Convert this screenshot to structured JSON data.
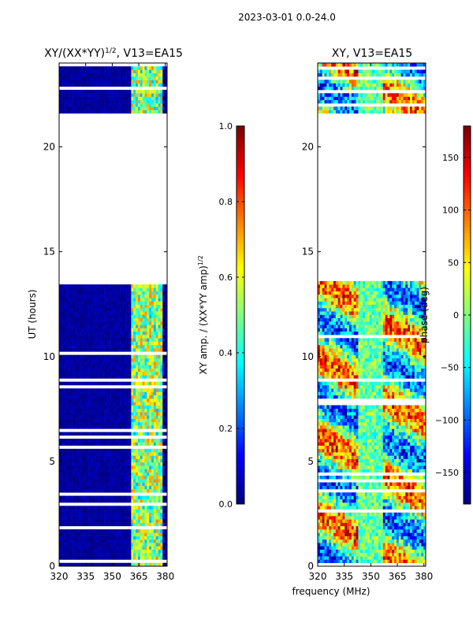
{
  "figure": {
    "suptitle": "2023-03-01 0.0-24.0",
    "xlabel_shared": "frequency (MHz)"
  },
  "chart_data": [
    {
      "type": "heatmap",
      "title_main": "XY/(XX*YY)",
      "title_sup": "1/2",
      "title_rest": ", V13=EA15",
      "ylabel": "UT (hours)",
      "x_range": [
        320,
        381
      ],
      "y_range": [
        0,
        24
      ],
      "x_ticks": [
        320,
        335,
        350,
        365,
        380
      ],
      "y_ticks": [
        0,
        5,
        10,
        15,
        20
      ],
      "colorbar": {
        "label_main": "XY amp. / (XX*YY amp)",
        "label_sup": "1/2",
        "range": [
          0.0,
          1.0
        ],
        "ticks": [
          "0.0",
          "0.2",
          "0.4",
          "0.6",
          "0.8",
          "1.0"
        ]
      },
      "data_blocks_ut": [
        [
          0,
          13.5
        ],
        [
          21.5,
          24
        ]
      ],
      "gap_ut": [
        [
          13.5,
          21.5
        ]
      ],
      "high_amp_band_mhz": [
        360,
        378
      ]
    },
    {
      "type": "heatmap",
      "title_main": "XY, V13=EA15",
      "ylabel": "",
      "x_range": [
        320,
        381
      ],
      "y_range": [
        0,
        24
      ],
      "x_ticks": [
        320,
        335,
        350,
        365,
        380
      ],
      "y_ticks": [
        0,
        5,
        10,
        15,
        20
      ],
      "colorbar": {
        "label_main": "phase (deg)",
        "range": [
          -180,
          180
        ],
        "ticks": [
          "−150",
          "−100",
          "−50",
          "0",
          "50",
          "100",
          "150"
        ]
      },
      "data_blocks_ut": [
        [
          0,
          13.5
        ],
        [
          21.5,
          24
        ]
      ],
      "gap_ut": [
        [
          13.5,
          21.5
        ]
      ]
    }
  ]
}
